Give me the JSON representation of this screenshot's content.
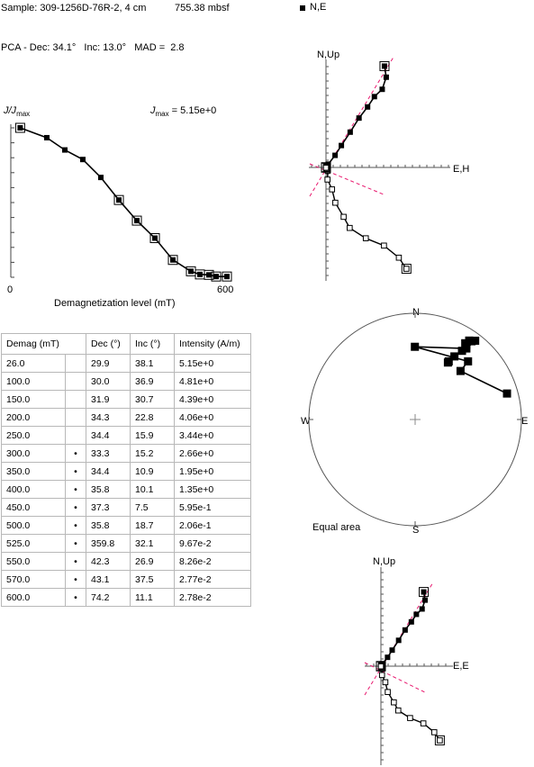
{
  "header": {
    "sample_label": "Sample: 309-1256D-76R-2, 4 cm",
    "depth_label": "755.38 mbsf",
    "pca_label": "PCA - Dec: 34.1°   Inc: 13.0°   MAD =  2.8",
    "legend_label": "N,E"
  },
  "chart_data": [
    {
      "type": "line",
      "ylabel_main": "J/J",
      "ylabel_sub": "max",
      "jmax_main": "J",
      "jmax_sub": "max",
      "jmax_value": " = 5.15e+0",
      "xlabel": "Demagnetization level (mT)",
      "xlim": [
        0,
        600
      ],
      "ylim": [
        0,
        1
      ],
      "x_tick_labels": [
        "0",
        "600"
      ],
      "x": [
        26,
        100,
        150,
        200,
        250,
        300,
        350,
        400,
        450,
        500,
        525,
        550,
        570,
        600
      ],
      "y": [
        1.0,
        0.934,
        0.852,
        0.788,
        0.668,
        0.517,
        0.379,
        0.262,
        0.116,
        0.04,
        0.019,
        0.016,
        0.005,
        0.005
      ],
      "pca_selected": [
        false,
        false,
        false,
        false,
        false,
        true,
        true,
        true,
        true,
        true,
        true,
        true,
        true,
        true
      ]
    },
    {
      "type": "scatter",
      "name": "Zijderveld N,E",
      "labels": {
        "up": "N,Up",
        "east": "E,H"
      },
      "horizontal": [
        [
          4.02,
          2.32
        ],
        [
          3.58,
          2.39
        ],
        [
          3.1,
          2.23
        ],
        [
          2.81,
          1.92
        ],
        [
          2.4,
          1.65
        ],
        [
          1.96,
          1.31
        ],
        [
          1.4,
          0.96
        ],
        [
          0.87,
          0.61
        ],
        [
          0.48,
          0.36
        ],
        [
          0.13,
          0.09
        ],
        [
          0.07,
          -0.01
        ],
        [
          0.06,
          0.05
        ],
        [
          0.02,
          0.01
        ],
        [
          0.01,
          0.0
        ]
      ],
      "vertical": [
        [
          4.02,
          3.19
        ],
        [
          3.58,
          2.89
        ],
        [
          3.1,
          2.3
        ],
        [
          2.81,
          1.58
        ],
        [
          2.4,
          0.94
        ],
        [
          1.96,
          0.7
        ],
        [
          1.4,
          0.37
        ],
        [
          0.87,
          0.24
        ],
        [
          0.48,
          0.06
        ],
        [
          0.13,
          0.07
        ],
        [
          0.07,
          0.01
        ],
        [
          0.06,
          0.04
        ],
        [
          0.02,
          0.02
        ],
        [
          0.01,
          0.0
        ]
      ],
      "pca_line_color": "#e8186e"
    },
    {
      "type": "scatter",
      "name": "Equal area",
      "labels": {
        "n": "N",
        "s": "S",
        "e": "E",
        "w": "W",
        "title": "Equal area"
      },
      "points": [
        [
          29.9,
          38.1
        ],
        [
          30.0,
          36.9
        ],
        [
          31.9,
          30.7
        ],
        [
          34.3,
          22.8
        ],
        [
          34.4,
          15.9
        ],
        [
          33.3,
          15.2
        ],
        [
          34.4,
          10.9
        ],
        [
          35.8,
          10.1
        ],
        [
          37.3,
          7.5
        ],
        [
          35.8,
          18.7
        ],
        [
          359.8,
          32.1
        ],
        [
          42.3,
          26.9
        ],
        [
          43.1,
          37.5
        ],
        [
          74.2,
          11.1
        ]
      ]
    },
    {
      "type": "scatter",
      "name": "Zijderveld E,E",
      "labels": {
        "up": "N,Up",
        "east": "E,E"
      },
      "horizontal": [
        [
          4.02,
          2.32
        ],
        [
          3.58,
          2.39
        ],
        [
          3.1,
          2.23
        ],
        [
          2.81,
          1.92
        ],
        [
          2.4,
          1.65
        ],
        [
          1.96,
          1.31
        ],
        [
          1.4,
          0.96
        ],
        [
          0.87,
          0.61
        ],
        [
          0.48,
          0.36
        ],
        [
          0.13,
          0.09
        ],
        [
          0.07,
          -0.01
        ],
        [
          0.06,
          0.05
        ],
        [
          0.02,
          0.01
        ],
        [
          0.01,
          0.0
        ]
      ],
      "vertical": [
        [
          4.02,
          3.19
        ],
        [
          3.58,
          2.89
        ],
        [
          3.1,
          2.3
        ],
        [
          2.81,
          1.58
        ],
        [
          2.4,
          0.94
        ],
        [
          1.96,
          0.7
        ],
        [
          1.4,
          0.37
        ],
        [
          0.87,
          0.24
        ],
        [
          0.48,
          0.06
        ],
        [
          0.13,
          0.07
        ],
        [
          0.07,
          0.01
        ],
        [
          0.06,
          0.04
        ],
        [
          0.02,
          0.02
        ],
        [
          0.01,
          0.0
        ]
      ]
    }
  ],
  "table": {
    "headers": [
      "Demag (mT)",
      "Dec (°)",
      "Inc (°)",
      "Intensity (A/m)"
    ],
    "rows": [
      {
        "demag": "26.0",
        "mark": "",
        "dec": "29.9",
        "inc": "38.1",
        "intensity": "5.15e+0"
      },
      {
        "demag": "100.0",
        "mark": "",
        "dec": "30.0",
        "inc": "36.9",
        "intensity": "4.81e+0"
      },
      {
        "demag": "150.0",
        "mark": "",
        "dec": "31.9",
        "inc": "30.7",
        "intensity": "4.39e+0"
      },
      {
        "demag": "200.0",
        "mark": "",
        "dec": "34.3",
        "inc": "22.8",
        "intensity": "4.06e+0"
      },
      {
        "demag": "250.0",
        "mark": "",
        "dec": "34.4",
        "inc": "15.9",
        "intensity": "3.44e+0"
      },
      {
        "demag": "300.0",
        "mark": "•",
        "dec": "33.3",
        "inc": "15.2",
        "intensity": "2.66e+0"
      },
      {
        "demag": "350.0",
        "mark": "•",
        "dec": "34.4",
        "inc": "10.9",
        "intensity": "1.95e+0"
      },
      {
        "demag": "400.0",
        "mark": "•",
        "dec": "35.8",
        "inc": "10.1",
        "intensity": "1.35e+0"
      },
      {
        "demag": "450.0",
        "mark": "•",
        "dec": "37.3",
        "inc": "7.5",
        "intensity": "5.95e-1"
      },
      {
        "demag": "500.0",
        "mark": "•",
        "dec": "35.8",
        "inc": "18.7",
        "intensity": "2.06e-1"
      },
      {
        "demag": "525.0",
        "mark": "•",
        "dec": "359.8",
        "inc": "32.1",
        "intensity": "9.67e-2"
      },
      {
        "demag": "550.0",
        "mark": "•",
        "dec": "42.3",
        "inc": "26.9",
        "intensity": "8.26e-2"
      },
      {
        "demag": "570.0",
        "mark": "•",
        "dec": "43.1",
        "inc": "37.5",
        "intensity": "2.77e-2"
      },
      {
        "demag": "600.0",
        "mark": "•",
        "dec": "74.2",
        "inc": "11.1",
        "intensity": "2.78e-2"
      }
    ]
  }
}
